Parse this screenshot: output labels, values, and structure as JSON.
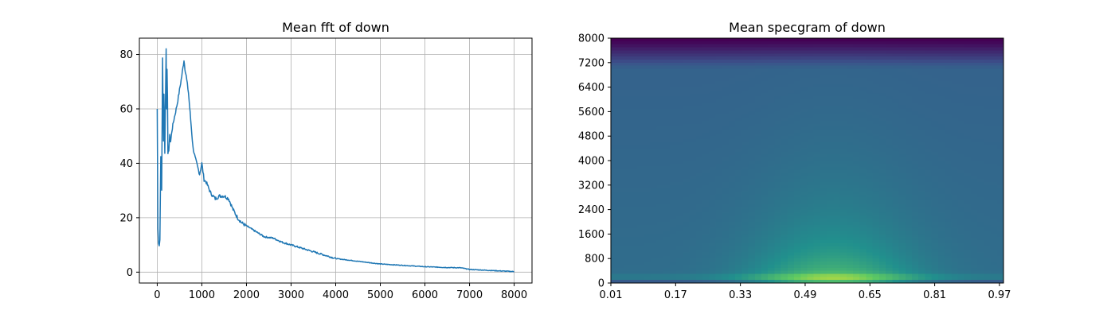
{
  "chart_data": [
    {
      "type": "line",
      "title": "Mean fft of down",
      "xlabel": "",
      "ylabel": "",
      "xlim": [
        -400,
        8400
      ],
      "ylim": [
        -4,
        86
      ],
      "grid": true,
      "x_ticks": [
        0,
        1000,
        2000,
        3000,
        4000,
        5000,
        6000,
        7000,
        8000
      ],
      "y_ticks": [
        0,
        20,
        40,
        60,
        80
      ],
      "x_tick_labels": [
        "0",
        "1000",
        "2000",
        "3000",
        "4000",
        "5000",
        "6000",
        "7000",
        "8000"
      ],
      "y_tick_labels": [
        "0",
        "20",
        "40",
        "60",
        "80"
      ],
      "line_color": "#1f77b4",
      "series": [
        {
          "name": "mean fft",
          "x": [
            0,
            15,
            30,
            45,
            60,
            80,
            100,
            120,
            130,
            140,
            150,
            170,
            190,
            200,
            210,
            220,
            230,
            240,
            260,
            280,
            300,
            330,
            360,
            400,
            450,
            500,
            550,
            600,
            620,
            650,
            700,
            750,
            800,
            850,
            900,
            950,
            1000,
            1050,
            1100,
            1150,
            1200,
            1300,
            1400,
            1500,
            1600,
            1700,
            1800,
            1900,
            2000,
            2200,
            2400,
            2600,
            2800,
            3000,
            3200,
            3500,
            3800,
            4000,
            4500,
            5000,
            5500,
            6000,
            6500,
            6800,
            7000,
            7500,
            8000
          ],
          "values": [
            60,
            16,
            11,
            10,
            12,
            43,
            30,
            79,
            60,
            48,
            66,
            44,
            70,
            82,
            60,
            75,
            65,
            43,
            45,
            50,
            48,
            52,
            55,
            58,
            62,
            67,
            72,
            78,
            75,
            72,
            66,
            56,
            46,
            42,
            39,
            36,
            40,
            34,
            33,
            31,
            29,
            27,
            28,
            28,
            27,
            23,
            20,
            18,
            17,
            15,
            13,
            12.5,
            11,
            10,
            9,
            7.5,
            6,
            5,
            4,
            3,
            2.5,
            2,
            1.7,
            1.6,
            1,
            0.6,
            0.2
          ]
        }
      ]
    },
    {
      "type": "heatmap",
      "title": "Mean specgram of down",
      "xlabel": "",
      "ylabel": "",
      "xlim": [
        0.01,
        0.98
      ],
      "ylim": [
        0,
        8000
      ],
      "x_ticks": [
        0.01,
        0.17,
        0.33,
        0.49,
        0.65,
        0.81,
        0.97
      ],
      "y_ticks": [
        0,
        800,
        1600,
        2400,
        3200,
        4000,
        4800,
        5600,
        6400,
        7200,
        8000
      ],
      "x_tick_labels": [
        "0.01",
        "0.17",
        "0.33",
        "0.49",
        "0.65",
        "0.81",
        "0.97"
      ],
      "y_tick_labels": [
        "0",
        "800",
        "1600",
        "2400",
        "3200",
        "4000",
        "4800",
        "5600",
        "6400",
        "7200",
        "8000"
      ],
      "colormap": "viridis",
      "colormap_stops": [
        "#440154",
        "#3b528b",
        "#21908d",
        "#5dc963",
        "#fde725"
      ],
      "peak_time": 0.56,
      "peak_frequency": 200
    }
  ]
}
